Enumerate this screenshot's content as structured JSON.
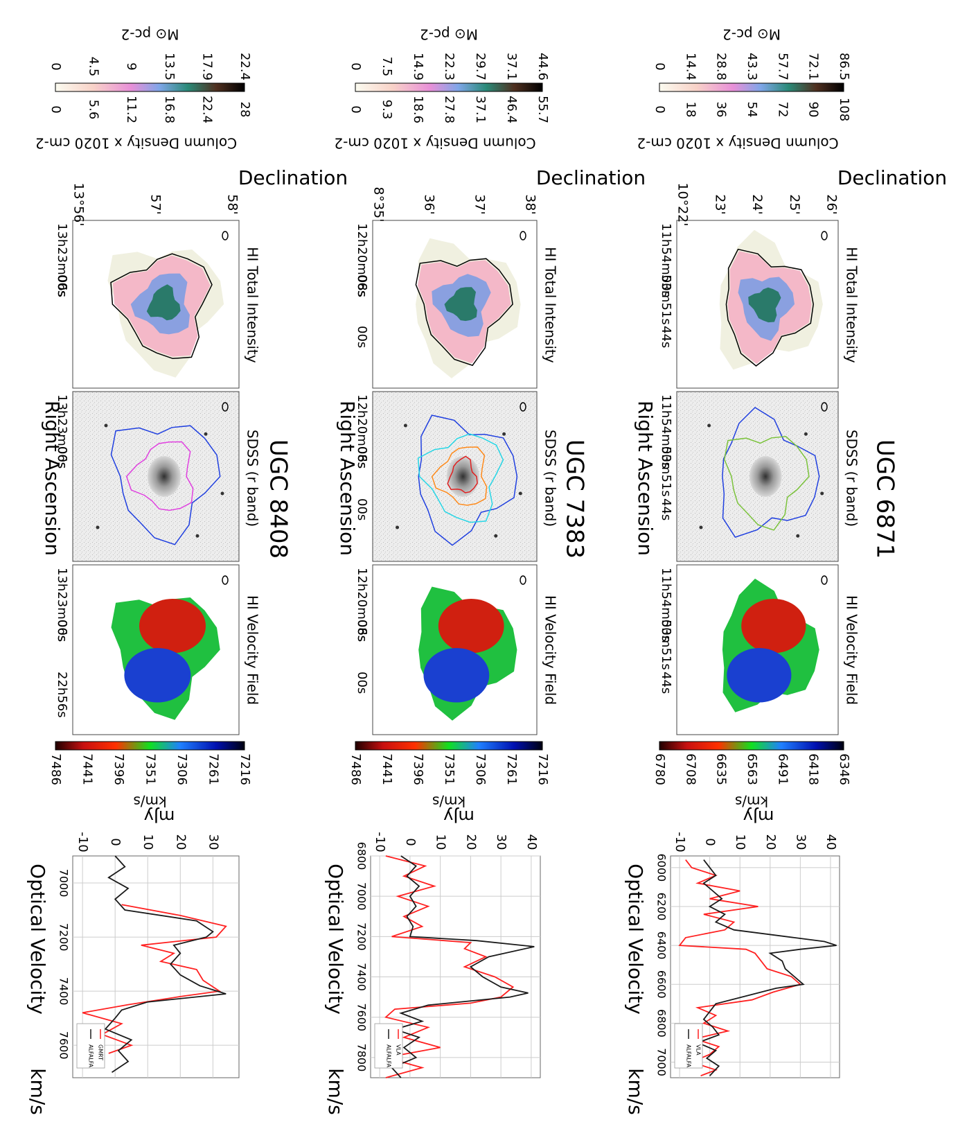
{
  "colors": {
    "vla": "#ff2020",
    "gmrt": "#ff2020",
    "alfalfa": "#1a1a1a",
    "contour_blue": "#1f3fe0",
    "contour_green": "#7ac23a",
    "contour_cyan": "#25d6e6",
    "contour_orange": "#ff8a1a",
    "contour_red": "#e02020",
    "contour_magenta": "#e040e0",
    "grid": "#cccccc"
  },
  "column_titles": {
    "hi_total": "HI Total Intensity",
    "sdss": "SDSS (r band)",
    "velocity_field": "HI Velocity Field"
  },
  "axis_labels": {
    "declination": "Declination",
    "right_ascension": "Right Ascension",
    "optical_velocity": "Optical Velocity",
    "velocity_unit": "km/s",
    "flux_unit": "mJy",
    "column_density_prefix": "Column Density  x  10",
    "column_density_exp": "20",
    "column_density_unit": "cm",
    "column_density_unit_exp": "-2",
    "surface_density": "M",
    "surface_density_sub": "⊙",
    "surface_density_unit": "pc",
    "surface_density_unit_exp": "-2",
    "velocity_colorbar_unit": "km/s"
  },
  "galaxies": [
    {
      "name": "UGC 6871",
      "density_scale_msun": [
        "0",
        "14.4",
        "28.8",
        "43.3",
        "57.7",
        "72.1",
        "86.5"
      ],
      "density_scale_cm": [
        "0",
        "18",
        "36",
        "54",
        "72",
        "90",
        "108"
      ],
      "dec_ticks": [
        "10°22'",
        "23'",
        "24'",
        "25'",
        "26'"
      ],
      "ra_ticks_intensity": [
        "11h54m00s",
        "53m51s",
        "44s"
      ],
      "ra_ticks_sdss": [
        "11h54m00s",
        "53m51s",
        "44s"
      ],
      "ra_ticks_velocity": [
        "11h54m00s",
        "53m51s",
        "44s"
      ],
      "velocity_scale": [
        "6780",
        "6708",
        "6635",
        "6563",
        "6491",
        "6418",
        "6346"
      ],
      "spectrum_legend": [
        "VLA",
        "ALFALFA"
      ]
    },
    {
      "name": "UGC 7383",
      "density_scale_msun": [
        "0",
        "7.5",
        "14.9",
        "22.3",
        "29.7",
        "37.1",
        "44.6"
      ],
      "density_scale_cm": [
        "0",
        "9.3",
        "18.6",
        "27.8",
        "37.1",
        "46.4",
        "55.7"
      ],
      "dec_ticks": [
        "8°35'",
        "36'",
        "37'",
        "38'"
      ],
      "ra_ticks_intensity": [
        "12h20m08s",
        "06s",
        "00s"
      ],
      "ra_ticks_sdss": [
        "12h20m08s",
        "06s",
        "00s"
      ],
      "ra_ticks_velocity": [
        "12h20m08s",
        "06s",
        "00s"
      ],
      "velocity_scale": [
        "7486",
        "7441",
        "7396",
        "7351",
        "7306",
        "7261",
        "7216"
      ],
      "spectrum_legend": [
        "VLA",
        "ALFALFA"
      ]
    },
    {
      "name": "UGC 8408",
      "density_scale_msun": [
        "0",
        "4.5",
        "9",
        "13.5",
        "17.9",
        "22.4"
      ],
      "density_scale_cm": [
        "0",
        "5.6",
        "11.2",
        "16.8",
        "22.4",
        "28"
      ],
      "dec_ticks": [
        "13°56'",
        "57'",
        "58'"
      ],
      "ra_ticks_intensity": [
        "13h23m06s",
        "00s"
      ],
      "ra_ticks_sdss": [
        "13h23m06s",
        "00s"
      ],
      "ra_ticks_velocity": [
        "13h23m06s",
        "00s",
        "22h56s"
      ],
      "velocity_scale": [
        "7486",
        "7441",
        "7396",
        "7351",
        "7306",
        "7261",
        "7216"
      ],
      "spectrum_legend": [
        "GMRT",
        "ALFALFA"
      ]
    }
  ],
  "chart_data": [
    {
      "type": "line",
      "title": "UGC 6871",
      "xlabel": "Optical Velocity   km/s",
      "ylabel": "mJy",
      "xlim": [
        5940,
        7080
      ],
      "ylim": [
        -13,
        43
      ],
      "xticks": [
        6000,
        6200,
        6400,
        6600,
        6800,
        7000
      ],
      "yticks": [
        -10,
        0,
        10,
        20,
        30,
        40
      ],
      "series": [
        {
          "name": "VLA",
          "x": [
            5960,
            6000,
            6040,
            6080,
            6120,
            6160,
            6200,
            6240,
            6280,
            6320,
            6360,
            6400,
            6420,
            6440,
            6480,
            6520,
            6560,
            6600,
            6640,
            6680,
            6720,
            6760,
            6800,
            6840,
            6880,
            6920,
            6960,
            7000,
            7040,
            7070
          ],
          "y": [
            -8,
            -6,
            2,
            -4,
            10,
            0,
            16,
            -2,
            8,
            5,
            -8,
            -10,
            12,
            15,
            17,
            19,
            27,
            30,
            21,
            14,
            -4,
            2,
            -2,
            6,
            -5,
            3,
            0,
            -6,
            2,
            -3
          ]
        },
        {
          "name": "ALFALFA",
          "x": [
            5960,
            6000,
            6040,
            6080,
            6120,
            6160,
            6200,
            6240,
            6280,
            6320,
            6360,
            6380,
            6400,
            6420,
            6440,
            6480,
            6520,
            6560,
            6600,
            6620,
            6660,
            6700,
            6740,
            6780,
            6820,
            6860,
            6900,
            6940,
            6980,
            7020,
            7070
          ],
          "y": [
            -2,
            0,
            2,
            -2,
            1,
            4,
            0,
            5,
            2,
            8,
            28,
            38,
            42,
            30,
            20,
            24,
            25,
            28,
            31,
            22,
            12,
            2,
            0,
            -2,
            1,
            3,
            -4,
            2,
            -1,
            3,
            0
          ]
        }
      ]
    },
    {
      "type": "line",
      "title": "UGC 7383",
      "xlabel": "Optical Velocity   km/s",
      "ylabel": "mJy",
      "xlim": [
        6800,
        7900
      ],
      "ylim": [
        -13,
        43
      ],
      "xticks": [
        6800,
        7000,
        7200,
        7400,
        7600,
        7800
      ],
      "yticks": [
        -10,
        0,
        10,
        20,
        30,
        40
      ],
      "series": [
        {
          "name": "VLA",
          "x": [
            6800,
            6850,
            6900,
            6950,
            7000,
            7050,
            7100,
            7150,
            7200,
            7230,
            7260,
            7300,
            7350,
            7400,
            7450,
            7500,
            7530,
            7560,
            7600,
            7650,
            7700,
            7750,
            7800,
            7850,
            7900
          ],
          "y": [
            -8,
            5,
            -2,
            8,
            -4,
            6,
            -2,
            4,
            -6,
            20,
            18,
            25,
            18,
            28,
            34,
            30,
            20,
            -5,
            -8,
            6,
            -2,
            10,
            -8,
            4,
            -8
          ]
        },
        {
          "name": "ALFALFA",
          "x": [
            6800,
            6850,
            6900,
            6950,
            7000,
            7050,
            7100,
            7150,
            7200,
            7220,
            7250,
            7300,
            7350,
            7400,
            7450,
            7480,
            7500,
            7540,
            7580,
            7620,
            7660,
            7700,
            7750,
            7800,
            7850,
            7900
          ],
          "y": [
            -3,
            2,
            -1,
            3,
            0,
            2,
            -1,
            1,
            0,
            22,
            41,
            26,
            20,
            24,
            30,
            39,
            33,
            6,
            -3,
            4,
            -5,
            3,
            -2,
            2,
            -6,
            -3
          ]
        }
      ]
    },
    {
      "type": "line",
      "title": "UGC 8408",
      "xlabel": "Optical Velocity   km/s",
      "ylabel": "mJy",
      "xlim": [
        6900,
        7720
      ],
      "ylim": [
        -13,
        38
      ],
      "xticks": [
        7000,
        7200,
        7400,
        7600
      ],
      "yticks": [
        -10,
        0,
        10,
        20,
        30
      ],
      "series": [
        {
          "name": "GMRT",
          "x": [
            7080,
            7120,
            7160,
            7200,
            7230,
            7260,
            7290,
            7320,
            7360,
            7400,
            7420,
            7450,
            7480,
            7520,
            7560,
            7600,
            7630
          ],
          "y": [
            2,
            20,
            34,
            31,
            8,
            18,
            14,
            25,
            27,
            32,
            20,
            4,
            -10,
            2,
            -4,
            5,
            -2
          ]
        },
        {
          "name": "ALFALFA",
          "x": [
            6900,
            6940,
            6980,
            7020,
            7060,
            7100,
            7140,
            7180,
            7200,
            7230,
            7260,
            7300,
            7340,
            7380,
            7410,
            7440,
            7470,
            7500,
            7540,
            7580,
            7620,
            7660,
            7700
          ],
          "y": [
            0,
            3,
            -2,
            4,
            0,
            3,
            25,
            30,
            28,
            18,
            20,
            17,
            20,
            26,
            34,
            10,
            2,
            0,
            -3,
            5,
            1,
            4,
            -1
          ]
        }
      ]
    }
  ]
}
